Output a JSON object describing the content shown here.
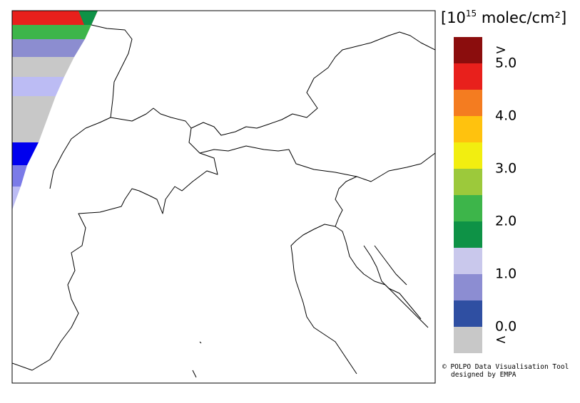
{
  "colorbar": {
    "title_prefix": "[10",
    "title_exponent": "15",
    "title_suffix": " molec/cm²]",
    "colors": [
      "#8b0d0d",
      "#e8201c",
      "#f47c20",
      "#ffc20e",
      "#f2ee10",
      "#9cc93b",
      "#3db54a",
      "#0e9246",
      "#c9c8ec",
      "#8c8dd2",
      "#2f4fa2",
      "#c8c8c8"
    ],
    "labels": [
      ">",
      "5.0",
      "4.0",
      "3.0",
      "2.0",
      "1.0",
      "0.0",
      "<"
    ]
  },
  "credits": [
    "© POLPO Data Visualisation Tool",
    "designed by EMPA"
  ]
}
